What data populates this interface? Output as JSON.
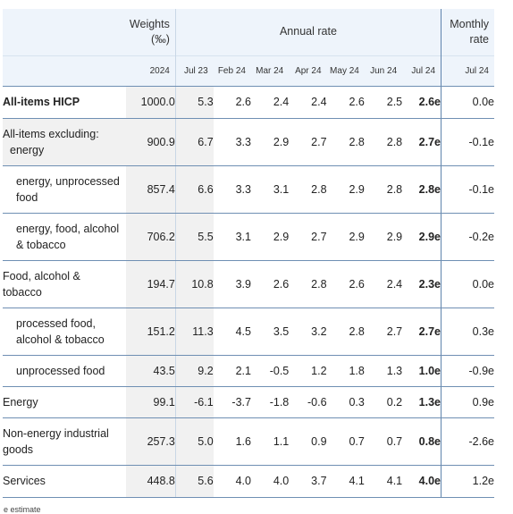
{
  "header": {
    "weights_label": "Weights (‰)",
    "annual_label": "Annual rate",
    "monthly_label": "Monthly rate",
    "weights_year": "2024",
    "periods": [
      "Jul 23",
      "Feb 24",
      "Mar 24",
      "Apr 24",
      "May 24",
      "Jun 24",
      "Jul 24"
    ],
    "monthly_period": "Jul 24"
  },
  "rows": [
    {
      "label": "All-items HICP",
      "weight": "1000.0",
      "annual": [
        "5.3",
        "2.6",
        "2.4",
        "2.4",
        "2.6",
        "2.5",
        "2.6e"
      ],
      "monthly": "0.0e"
    },
    {
      "label": "All-items excluding:",
      "label2": "energy",
      "weight": "900.9",
      "annual": [
        "6.7",
        "3.3",
        "2.9",
        "2.7",
        "2.8",
        "2.8",
        "2.7e"
      ],
      "monthly": "-0.1e"
    },
    {
      "label": "energy, unprocessed",
      "label2": "food",
      "weight": "857.4",
      "annual": [
        "6.6",
        "3.3",
        "3.1",
        "2.8",
        "2.9",
        "2.8",
        "2.8e"
      ],
      "monthly": "-0.1e"
    },
    {
      "label": "energy, food, alcohol",
      "label2": "& tobacco",
      "weight": "706.2",
      "annual": [
        "5.5",
        "3.1",
        "2.9",
        "2.7",
        "2.9",
        "2.9",
        "2.9e"
      ],
      "monthly": "-0.2e"
    },
    {
      "label": "Food, alcohol &",
      "label2": "tobacco",
      "weight": "194.7",
      "annual": [
        "10.8",
        "3.9",
        "2.6",
        "2.8",
        "2.6",
        "2.4",
        "2.3e"
      ],
      "monthly": "0.0e"
    },
    {
      "label": "processed food,",
      "label2": "alcohol & tobacco",
      "weight": "151.2",
      "annual": [
        "11.3",
        "4.5",
        "3.5",
        "3.2",
        "2.8",
        "2.7",
        "2.7e"
      ],
      "monthly": "0.3e"
    },
    {
      "label": "unprocessed food",
      "weight": "43.5",
      "annual": [
        "9.2",
        "2.1",
        "-0.5",
        "1.2",
        "1.8",
        "1.3",
        "1.0e"
      ],
      "monthly": "-0.9e"
    },
    {
      "label": "Energy",
      "weight": "99.1",
      "annual": [
        "-6.1",
        "-3.7",
        "-1.8",
        "-0.6",
        "0.3",
        "0.2",
        "1.3e"
      ],
      "monthly": "0.9e"
    },
    {
      "label": "Non-energy industrial",
      "label2": "goods",
      "weight": "257.3",
      "annual": [
        "5.0",
        "1.6",
        "1.1",
        "0.9",
        "0.7",
        "0.7",
        "0.8e"
      ],
      "monthly": "-2.6e"
    },
    {
      "label": "Services",
      "weight": "448.8",
      "annual": [
        "5.6",
        "4.0",
        "4.0",
        "3.7",
        "4.1",
        "4.1",
        "4.0e"
      ],
      "monthly": "1.2e"
    }
  ],
  "footnote": "e estimate"
}
